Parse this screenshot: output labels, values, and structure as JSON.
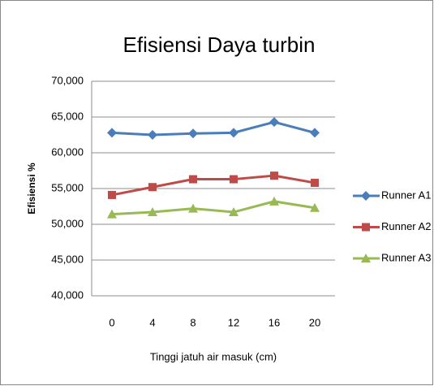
{
  "chart_data": {
    "type": "line",
    "title": "Efisiensi Daya turbin",
    "x_label": "Tinggi jatuh air masuk (cm)",
    "y_label": "Efisiensi %",
    "categories": [
      "0",
      "4",
      "8",
      "12",
      "16",
      "20"
    ],
    "series": [
      {
        "name": "Runner A1",
        "color": "#4a7ebb",
        "marker": "diamond",
        "values": [
          62.8,
          62.5,
          62.7,
          62.8,
          64.3,
          62.8
        ]
      },
      {
        "name": "Runner A2",
        "color": "#be4b48",
        "marker": "square",
        "values": [
          54.1,
          55.2,
          56.3,
          56.3,
          56.8,
          55.8
        ]
      },
      {
        "name": "Runner A3",
        "color": "#98b954",
        "marker": "triangle",
        "values": [
          51.4,
          51.7,
          52.2,
          51.7,
          53.2,
          52.3
        ]
      }
    ],
    "ylim": [
      40,
      70
    ],
    "yticks": [
      {
        "value": 40,
        "label": "40,000"
      },
      {
        "value": 45,
        "label": "45,000"
      },
      {
        "value": 50,
        "label": "50,000"
      },
      {
        "value": 55,
        "label": "55,000"
      },
      {
        "value": 60,
        "label": "60,000"
      },
      {
        "value": 65,
        "label": "65,000"
      },
      {
        "value": 70,
        "label": "70,000"
      }
    ],
    "grid": true,
    "legend": "right"
  }
}
